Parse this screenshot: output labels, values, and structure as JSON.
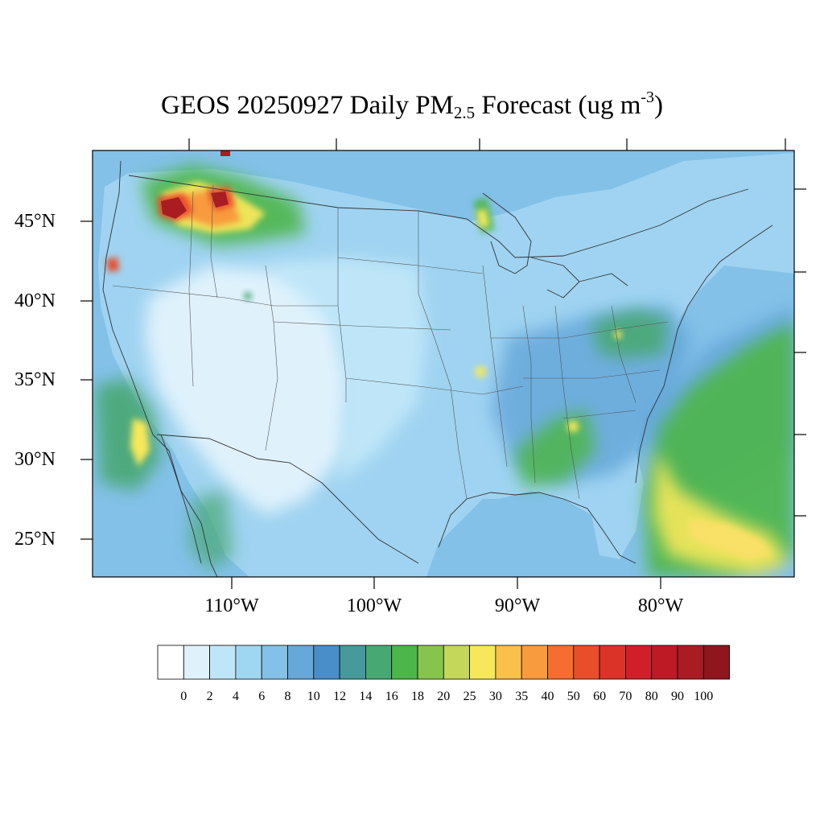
{
  "title": {
    "prefix": "GEOS 20250927 Daily PM",
    "subscript": "2.5",
    "middle": " Forecast (ug m",
    "superscript": "-3",
    "suffix": ")"
  },
  "lat_labels": [
    "45°N",
    "40°N",
    "35°N",
    "30°N",
    "25°N"
  ],
  "lon_labels": [
    "110°W",
    "100°W",
    "90°W",
    "80°W"
  ],
  "colorbar": {
    "levels": [
      "0",
      "2",
      "4",
      "6",
      "8",
      "10",
      "12",
      "14",
      "16",
      "18",
      "20",
      "25",
      "30",
      "35",
      "40",
      "50",
      "60",
      "70",
      "80",
      "90",
      "100"
    ],
    "colors": [
      "#ffffff",
      "#dff2fc",
      "#bfe6f8",
      "#9fd7f3",
      "#83c1e8",
      "#66a8da",
      "#4a8ec9",
      "#47999a",
      "#48a873",
      "#4db64a",
      "#86c54d",
      "#c4d75a",
      "#f6e85a",
      "#f9c04a",
      "#f89b3e",
      "#f56d30",
      "#e84e2a",
      "#dc3328",
      "#d11f2a",
      "#be1a26",
      "#a91c22",
      "#8f161c"
    ]
  },
  "map_colors": {
    "land": "#9fd3f1",
    "ocean": "#83c1e8",
    "southwest": "#dff2fc",
    "plume_green": "#4db64a",
    "plume_yellow": "#f6e85a",
    "hotspot_red": "#e84e2a",
    "hotspot_dark": "#a91c22",
    "boundary": "#333333"
  }
}
